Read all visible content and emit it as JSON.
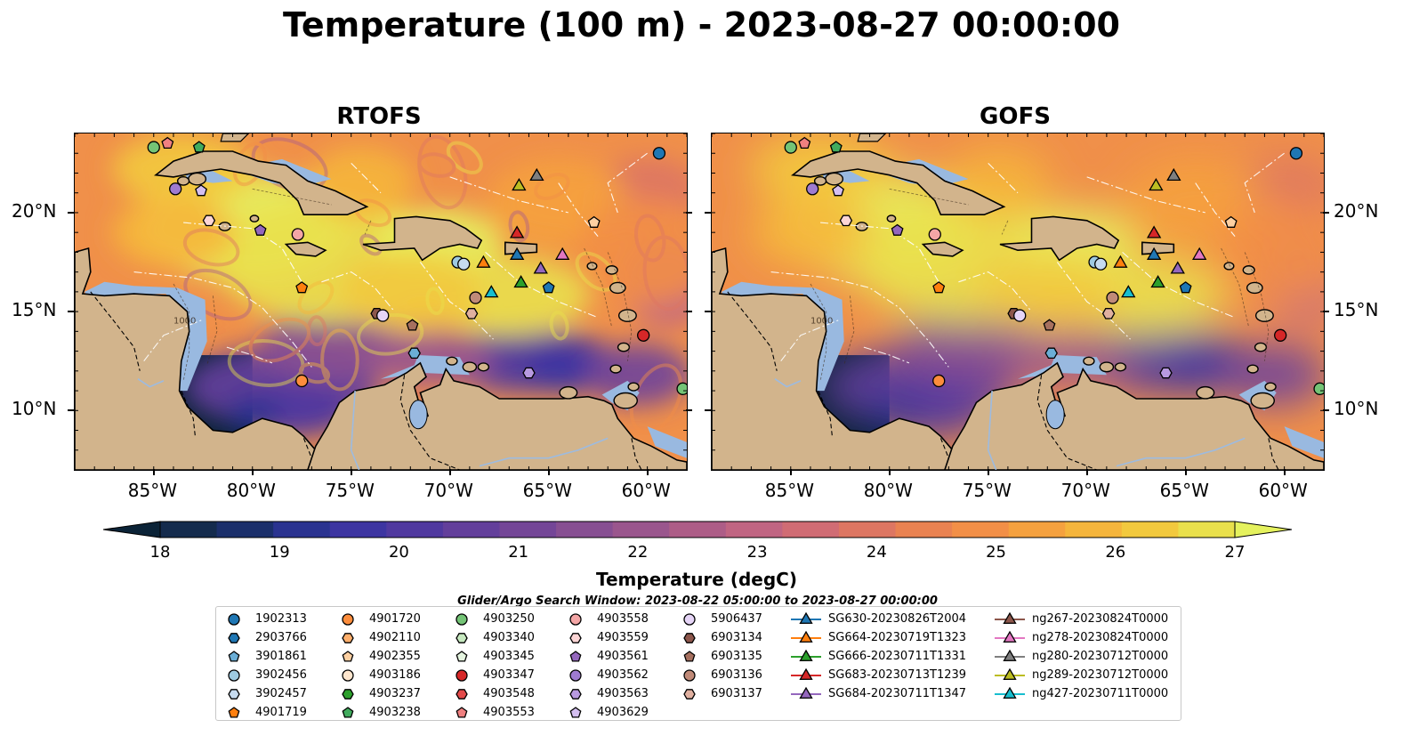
{
  "title": "Temperature (100 m) - 2023-08-27 00:00:00",
  "panels": [
    {
      "title": "RTOFS"
    },
    {
      "title": "GOFS"
    }
  ],
  "map": {
    "lon_range": [
      -89,
      -58
    ],
    "lat_range": [
      7,
      24
    ],
    "lon_ticks": [
      {
        "value": -85,
        "label": "85°W"
      },
      {
        "value": -80,
        "label": "80°W"
      },
      {
        "value": -75,
        "label": "75°W"
      },
      {
        "value": -70,
        "label": "70°W"
      },
      {
        "value": -65,
        "label": "65°W"
      },
      {
        "value": -60,
        "label": "60°W"
      }
    ],
    "lat_ticks": [
      {
        "value": 10,
        "label": "10°N"
      },
      {
        "value": 15,
        "label": "15°N"
      },
      {
        "value": 20,
        "label": "20°N"
      }
    ],
    "land_color": "#d2b48c",
    "shelf_color": "#99b9e0",
    "contour_label": "1000"
  },
  "colorbar": {
    "label": "Temperature (degC)",
    "min": 18,
    "max": 27,
    "ticks": [
      "18",
      "19",
      "20",
      "21",
      "22",
      "23",
      "24",
      "25",
      "26",
      "27"
    ],
    "colors": [
      "#0b2337",
      "#142b4d",
      "#1b2f6b",
      "#2a3390",
      "#3d35a1",
      "#50399f",
      "#633f9b",
      "#744697",
      "#874f92",
      "#9a568d",
      "#ad5d87",
      "#c06582",
      "#d06c74",
      "#dd7662",
      "#e98251",
      "#f28f47",
      "#f5a13f",
      "#f5b53c",
      "#f2c93e",
      "#e9e04c",
      "#e5f25e"
    ]
  },
  "legend_title": "Glider/Argo Search Window: 2023-08-22 05:00:00 to 2023-08-27 00:00:00",
  "legend": [
    {
      "label": "1902313",
      "marker": "circle",
      "color": "#1f77b4",
      "line": false
    },
    {
      "label": "2903766",
      "marker": "hexagon",
      "color": "#1f77b4",
      "line": false
    },
    {
      "label": "3901861",
      "marker": "pentagon",
      "color": "#6baed6",
      "line": false
    },
    {
      "label": "3902456",
      "marker": "circle",
      "color": "#9ecae1",
      "line": false
    },
    {
      "label": "3902457",
      "marker": "hexagon",
      "color": "#c6dbef",
      "line": false
    },
    {
      "label": "4901719",
      "marker": "pentagon",
      "color": "#ff7f0e",
      "line": false
    },
    {
      "label": "4901720",
      "marker": "circle",
      "color": "#fd8d3c",
      "line": false
    },
    {
      "label": "4902110",
      "marker": "hexagon",
      "color": "#fdae6b",
      "line": false
    },
    {
      "label": "4902355",
      "marker": "pentagon",
      "color": "#fdd0a2",
      "line": false
    },
    {
      "label": "4903186",
      "marker": "circle",
      "color": "#fee6ce",
      "line": false
    },
    {
      "label": "4903237",
      "marker": "hexagon",
      "color": "#2ca02c",
      "line": false
    },
    {
      "label": "4903238",
      "marker": "pentagon",
      "color": "#41ab5d",
      "line": false
    },
    {
      "label": "4903250",
      "marker": "circle",
      "color": "#74c476",
      "line": false
    },
    {
      "label": "4903340",
      "marker": "hexagon",
      "color": "#c7e9c0",
      "line": false
    },
    {
      "label": "4903345",
      "marker": "pentagon",
      "color": "#e5f5e0",
      "line": false
    },
    {
      "label": "4903347",
      "marker": "circle",
      "color": "#d62728",
      "line": false
    },
    {
      "label": "4903548",
      "marker": "hexagon",
      "color": "#e34a4a",
      "line": false
    },
    {
      "label": "4903553",
      "marker": "pentagon",
      "color": "#f08080",
      "line": false
    },
    {
      "label": "4903558",
      "marker": "circle",
      "color": "#f4a6a6",
      "line": false
    },
    {
      "label": "4903559",
      "marker": "hexagon",
      "color": "#fcd5d5",
      "line": false
    },
    {
      "label": "4903561",
      "marker": "pentagon",
      "color": "#9467bd",
      "line": false
    },
    {
      "label": "4903562",
      "marker": "circle",
      "color": "#9e7bd0",
      "line": false
    },
    {
      "label": "4903563",
      "marker": "hexagon",
      "color": "#b89ae0",
      "line": false
    },
    {
      "label": "4903629",
      "marker": "pentagon",
      "color": "#d4bff0",
      "line": false
    },
    {
      "label": "5906437",
      "marker": "circle",
      "color": "#e6d5f7",
      "line": false
    },
    {
      "label": "6903134",
      "marker": "hexagon",
      "color": "#8c564b",
      "line": false
    },
    {
      "label": "6903135",
      "marker": "pentagon",
      "color": "#a6705f",
      "line": false
    },
    {
      "label": "6903136",
      "marker": "circle",
      "color": "#c08a78",
      "line": false
    },
    {
      "label": "6903137",
      "marker": "hexagon",
      "color": "#e0b0a0",
      "line": false
    },
    {
      "label": "SG630-20230826T2004",
      "marker": "triangle",
      "color": "#1f77b4",
      "line": true
    },
    {
      "label": "SG664-20230719T1323",
      "marker": "triangle",
      "color": "#ff7f0e",
      "line": true
    },
    {
      "label": "SG666-20230711T1331",
      "marker": "triangle",
      "color": "#2ca02c",
      "line": true
    },
    {
      "label": "SG683-20230713T1239",
      "marker": "triangle",
      "color": "#d62728",
      "line": true
    },
    {
      "label": "SG684-20230711T1347",
      "marker": "triangle",
      "color": "#9467bd",
      "line": true
    },
    {
      "label": "ng267-20230824T0000",
      "marker": "triangle",
      "color": "#8c564b",
      "line": true
    },
    {
      "label": "ng278-20230824T0000",
      "marker": "triangle",
      "color": "#e377c2",
      "line": true
    },
    {
      "label": "ng280-20230712T0000",
      "marker": "triangle",
      "color": "#7f7f7f",
      "line": true
    },
    {
      "label": "ng289-20230712T0000",
      "marker": "triangle",
      "color": "#bcbd22",
      "line": true
    },
    {
      "label": "ng427-20230711T0000",
      "marker": "triangle",
      "color": "#17becf",
      "line": true
    }
  ],
  "stations": [
    {
      "lon": -85.0,
      "lat": 23.3,
      "marker": "circle",
      "color": "#74c476"
    },
    {
      "lon": -84.3,
      "lat": 23.5,
      "marker": "pentagon",
      "color": "#f08080"
    },
    {
      "lon": -82.7,
      "lat": 23.3,
      "marker": "pentagon",
      "color": "#41ab5d"
    },
    {
      "lon": -83.9,
      "lat": 21.2,
      "marker": "circle",
      "color": "#9e7bd0"
    },
    {
      "lon": -82.6,
      "lat": 21.1,
      "marker": "pentagon",
      "color": "#d4bff0"
    },
    {
      "lon": -82.2,
      "lat": 19.6,
      "marker": "hexagon",
      "color": "#fcd5d5"
    },
    {
      "lon": -79.6,
      "lat": 19.1,
      "marker": "pentagon",
      "color": "#9467bd"
    },
    {
      "lon": -77.7,
      "lat": 18.9,
      "marker": "circle",
      "color": "#f4a6a6"
    },
    {
      "lon": -77.5,
      "lat": 16.2,
      "marker": "pentagon",
      "color": "#ff7f0e"
    },
    {
      "lon": -73.7,
      "lat": 14.9,
      "marker": "hexagon",
      "color": "#8c564b"
    },
    {
      "lon": -73.4,
      "lat": 14.8,
      "marker": "circle",
      "color": "#e6d5f7"
    },
    {
      "lon": -71.9,
      "lat": 14.3,
      "marker": "pentagon",
      "color": "#a6705f"
    },
    {
      "lon": -71.8,
      "lat": 12.9,
      "marker": "hexagon",
      "color": "#6baed6"
    },
    {
      "lon": -77.5,
      "lat": 11.5,
      "marker": "circle",
      "color": "#fd8d3c"
    },
    {
      "lon": -69.6,
      "lat": 17.5,
      "marker": "circle",
      "color": "#9ecae1"
    },
    {
      "lon": -69.3,
      "lat": 17.4,
      "marker": "circle",
      "color": "#c6dbef"
    },
    {
      "lon": -68.7,
      "lat": 15.7,
      "marker": "circle",
      "color": "#c08a78"
    },
    {
      "lon": -68.9,
      "lat": 14.9,
      "marker": "hexagon",
      "color": "#e0b0a0"
    },
    {
      "lon": -66.0,
      "lat": 11.9,
      "marker": "hexagon",
      "color": "#b89ae0"
    },
    {
      "lon": -65.0,
      "lat": 16.2,
      "marker": "pentagon",
      "color": "#1f77b4"
    },
    {
      "lon": -62.7,
      "lat": 19.5,
      "marker": "pentagon",
      "color": "#fdd0a2"
    },
    {
      "lon": -59.4,
      "lat": 23.0,
      "marker": "circle",
      "color": "#1f77b4"
    },
    {
      "lon": -60.2,
      "lat": 13.8,
      "marker": "circle",
      "color": "#d62728"
    },
    {
      "lon": -58.2,
      "lat": 11.1,
      "marker": "circle",
      "color": "#74c476"
    },
    {
      "lon": -66.5,
      "lat": 21.4,
      "marker": "triangle",
      "color": "#bcbd22"
    },
    {
      "lon": -65.6,
      "lat": 21.9,
      "marker": "triangle",
      "color": "#7f7f7f"
    },
    {
      "lon": -66.6,
      "lat": 19.0,
      "marker": "triangle",
      "color": "#d62728"
    },
    {
      "lon": -66.6,
      "lat": 17.9,
      "marker": "triangle",
      "color": "#1f77b4"
    },
    {
      "lon": -68.3,
      "lat": 17.5,
      "marker": "triangle",
      "color": "#ff7f0e"
    },
    {
      "lon": -66.4,
      "lat": 16.5,
      "marker": "triangle",
      "color": "#2ca02c"
    },
    {
      "lon": -65.4,
      "lat": 17.2,
      "marker": "triangle",
      "color": "#9467bd"
    },
    {
      "lon": -64.3,
      "lat": 17.9,
      "marker": "triangle",
      "color": "#e377c2"
    },
    {
      "lon": -67.9,
      "lat": 16.0,
      "marker": "triangle",
      "color": "#17becf"
    }
  ]
}
